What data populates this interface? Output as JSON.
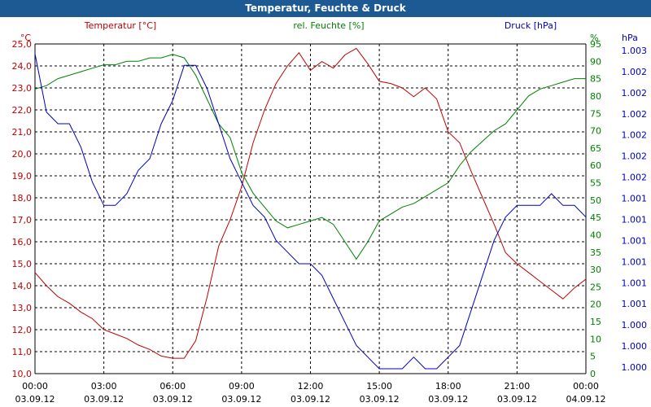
{
  "window": {
    "title": "Temperatur, Feuchte & Druck"
  },
  "colors": {
    "temperature": "#c00000",
    "humidity": "#008000",
    "pressure": "#0000c0",
    "grid": "#000000",
    "titlebar": "#1d5a94"
  },
  "chart_data": {
    "type": "line",
    "title": "Temperatur, Feuchte & Druck",
    "grid": true,
    "x_ticks": [
      {
        "time": "00:00",
        "date": "03.09.12"
      },
      {
        "time": "03:00",
        "date": "03.09.12"
      },
      {
        "time": "06:00",
        "date": "03.09.12"
      },
      {
        "time": "09:00",
        "date": "03.09.12"
      },
      {
        "time": "12:00",
        "date": "03.09.12"
      },
      {
        "time": "15:00",
        "date": "03.09.12"
      },
      {
        "time": "18:00",
        "date": "03.09.12"
      },
      {
        "time": "21:00",
        "date": "03.09.12"
      },
      {
        "time": "00:00",
        "date": "04.09.12"
      }
    ],
    "x_hours": [
      0,
      0.5,
      1,
      1.5,
      2,
      2.5,
      3,
      3.5,
      4,
      4.5,
      5,
      5.5,
      6,
      6.5,
      7,
      7.5,
      8,
      8.5,
      9,
      9.5,
      10,
      10.5,
      11,
      11.5,
      12,
      12.5,
      13,
      13.5,
      14,
      14.5,
      15,
      15.5,
      16,
      16.5,
      17,
      17.5,
      18,
      18.5,
      19,
      19.5,
      20,
      20.5,
      21,
      21.5,
      22,
      22.5,
      23,
      23.5,
      24
    ],
    "axes": {
      "temperature": {
        "label": "Temperatur [°C]",
        "unit": "°C",
        "range": [
          10,
          25
        ],
        "ticks": [
          "10,0",
          "11,0",
          "12,0",
          "13,0",
          "14,0",
          "15,0",
          "16,0",
          "17,0",
          "18,0",
          "19,0",
          "20,0",
          "21,0",
          "22,0",
          "23,0",
          "24,0",
          "25,0"
        ]
      },
      "humidity": {
        "label": "rel. Feuchte [%]",
        "unit": "%",
        "range": [
          0,
          95
        ],
        "ticks": [
          "0",
          "5",
          "10",
          "15",
          "20",
          "25",
          "30",
          "35",
          "40",
          "45",
          "50",
          "55",
          "60",
          "65",
          "70",
          "75",
          "80",
          "85",
          "90",
          "95"
        ]
      },
      "pressure": {
        "label": "Druck [hPa]",
        "unit": "hPa",
        "ticks": [
          "1.000",
          "1.000",
          "1.000",
          "1.001",
          "1.001",
          "1.001",
          "1.001",
          "1.001",
          "1.001",
          "1.002",
          "1.002",
          "1.002",
          "1.002",
          "1.002",
          "1.002",
          "1.003"
        ]
      }
    },
    "series": [
      {
        "name": "Temperatur [°C]",
        "axis": "temperature",
        "values": [
          14.6,
          14.0,
          13.5,
          13.2,
          12.8,
          12.5,
          12.0,
          11.8,
          11.6,
          11.3,
          11.1,
          10.8,
          10.7,
          10.7,
          11.5,
          13.5,
          15.8,
          17.0,
          18.5,
          20.5,
          22.0,
          23.2,
          24.0,
          24.6,
          23.8,
          24.2,
          23.9,
          24.5,
          24.8,
          24.1,
          23.3,
          23.2,
          23.0,
          22.6,
          23.0,
          22.5,
          21.0,
          20.5,
          19.2,
          18.0,
          16.8,
          15.5,
          15.0,
          14.6,
          14.2,
          13.8,
          13.4,
          13.9,
          14.3
        ]
      },
      {
        "name": "rel. Feuchte [%]",
        "axis": "humidity",
        "values": [
          82,
          83,
          85,
          86,
          87,
          88,
          89,
          89,
          90,
          90,
          91,
          91,
          92,
          91,
          86,
          79,
          72,
          68,
          58,
          52,
          48,
          44,
          42,
          43,
          44,
          45,
          43,
          38,
          33,
          38,
          44,
          46,
          48,
          49,
          51,
          53,
          55,
          60,
          64,
          67,
          70,
          72,
          76,
          80,
          82,
          83,
          84,
          85,
          85
        ]
      },
      {
        "name": "Druck [hPa]",
        "axis": "pressure",
        "values": [
          1.003,
          1.0025,
          1.0024,
          1.0024,
          1.0022,
          1.0019,
          1.0017,
          1.0017,
          1.0018,
          1.002,
          1.0021,
          1.0024,
          1.0026,
          1.0029,
          1.0029,
          1.0027,
          1.0024,
          1.0021,
          1.0019,
          1.0017,
          1.0016,
          1.0014,
          1.0013,
          1.0012,
          1.0012,
          1.0011,
          1.0009,
          1.0007,
          1.0005,
          1.0004,
          1.0003,
          1.0003,
          1.0003,
          1.0004,
          1.0003,
          1.0003,
          1.0004,
          1.0005,
          1.0008,
          1.0011,
          1.0014,
          1.0016,
          1.0017,
          1.0017,
          1.0017,
          1.0018,
          1.0017,
          1.0017,
          1.0016
        ]
      }
    ]
  }
}
